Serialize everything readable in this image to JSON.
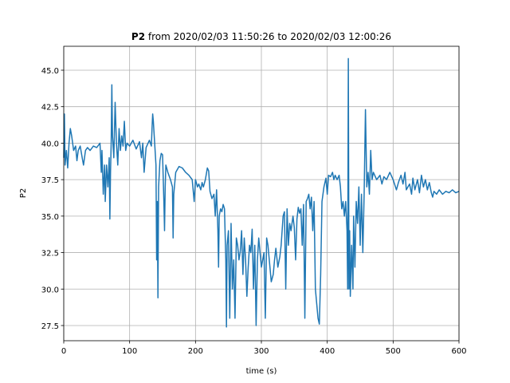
{
  "chart_data": {
    "type": "line",
    "title": {
      "bold": "P2",
      "text": "from 2020/02/03 11:50:26 to 2020/02/03 12:00:26"
    },
    "xlabel": "time (s)",
    "ylabel": "P2",
    "xlim": [
      0,
      600
    ],
    "ylim": [
      26.46,
      46.64
    ],
    "xticks": [
      0,
      100,
      200,
      300,
      400,
      500,
      600
    ],
    "yticks": [
      27.5,
      {
        "value": 30,
        "label": "30.0"
      },
      32.5,
      {
        "value": 35,
        "label": "35.0"
      },
      37.5,
      {
        "value": 40,
        "label": "40.0"
      },
      42.5,
      {
        "value": 45,
        "label": "45.0"
      }
    ],
    "grid": true,
    "series": [
      {
        "name": "P2",
        "color": "#1f77b4",
        "x": [
          0,
          1,
          2,
          4,
          6,
          8,
          10,
          12,
          15,
          18,
          20,
          22,
          25,
          28,
          30,
          33,
          36,
          40,
          45,
          50,
          55,
          57,
          58,
          60,
          62,
          63,
          65,
          67,
          69,
          70,
          71,
          72,
          73,
          74,
          76,
          78,
          80,
          82,
          84,
          86,
          88,
          90,
          92,
          94,
          96,
          100,
          105,
          110,
          115,
          118,
          120,
          122,
          125,
          130,
          133,
          134,
          135,
          136,
          138,
          140,
          141,
          142,
          143,
          144,
          146,
          148,
          150,
          152,
          153,
          154,
          155,
          158,
          162,
          165,
          166,
          167,
          170,
          175,
          180,
          185,
          190,
          195,
          198,
          200,
          203,
          205,
          208,
          210,
          212,
          215,
          218,
          220,
          222,
          225,
          228,
          230,
          232,
          234,
          235,
          236,
          238,
          240,
          242,
          244,
          246,
          247,
          248,
          250,
          252,
          254,
          256,
          258,
          260,
          262,
          264,
          266,
          268,
          270,
          272,
          274,
          276,
          278,
          280,
          282,
          284,
          286,
          288,
          290,
          292,
          294,
          296,
          298,
          300,
          304,
          306,
          308,
          310,
          312,
          315,
          318,
          320,
          322,
          325,
          328,
          330,
          333,
          335,
          337,
          339,
          341,
          343,
          345,
          348,
          350,
          352,
          354,
          356,
          358,
          360,
          362,
          364,
          366,
          368,
          370,
          372,
          374,
          376,
          378,
          380,
          382,
          384,
          386,
          388,
          390,
          392,
          395,
          398,
          400,
          402,
          405,
          408,
          410,
          412,
          415,
          418,
          420,
          422,
          424,
          426,
          428,
          430,
          431,
          432,
          433,
          434,
          435,
          437,
          439,
          440,
          442,
          444,
          446,
          448,
          450,
          452,
          454,
          456,
          458,
          460,
          462,
          464,
          466,
          468,
          470,
          475,
          480,
          483,
          486,
          490,
          495,
          500,
          505,
          508,
          512,
          515,
          518,
          520,
          525,
          528,
          530,
          533,
          537,
          540,
          543,
          546,
          549,
          552,
          555,
          558,
          560,
          562,
          566,
          570,
          575,
          580,
          585,
          590,
          595,
          600
        ],
        "values": [
          39,
          42,
          38.5,
          39.5,
          38.3,
          40,
          41,
          40.5,
          39.5,
          39.8,
          38.8,
          39.5,
          39.8,
          39,
          38.5,
          39.5,
          39.7,
          39.5,
          39.8,
          39.7,
          40,
          38,
          39.5,
          36.5,
          38.5,
          36,
          38.5,
          37,
          39,
          34.8,
          38,
          40,
          44,
          40.5,
          39,
          42.8,
          40,
          38.5,
          41,
          39.5,
          40.5,
          39.8,
          41.5,
          39.5,
          40,
          39.8,
          40.2,
          39.6,
          40.1,
          39,
          40,
          38,
          39.7,
          40.2,
          39.8,
          41,
          42,
          41.5,
          40,
          38.5,
          32,
          36,
          29.4,
          37,
          38.8,
          39.3,
          39.2,
          36,
          34,
          37,
          38.5,
          38,
          37.5,
          37,
          33.5,
          36.5,
          38,
          38.4,
          38.3,
          38,
          37.8,
          37.5,
          36,
          37.5,
          37,
          37.2,
          36.8,
          37.3,
          37,
          37.5,
          38.3,
          38.1,
          36.7,
          36.2,
          36.5,
          35,
          36.8,
          34,
          31.5,
          35,
          35.5,
          35.3,
          35.8,
          35.5,
          32,
          27.4,
          33,
          34,
          28,
          34.5,
          30,
          32,
          28,
          33.5,
          33,
          32,
          32.6,
          34,
          31,
          33.5,
          32,
          29.5,
          31.5,
          33,
          32.5,
          34.1,
          30,
          33,
          27.5,
          32,
          33.5,
          32.5,
          31.5,
          32.5,
          28,
          33.5,
          33,
          32,
          30.5,
          31,
          32,
          32.8,
          31.5,
          32.2,
          33,
          35,
          35.3,
          30,
          35.5,
          33,
          34.5,
          34,
          35,
          34.2,
          32,
          34.8,
          35.6,
          35.2,
          35.5,
          33,
          35.8,
          28,
          36,
          36.2,
          36.5,
          35.5,
          36.3,
          34,
          36,
          30,
          29,
          28,
          27.6,
          31,
          36,
          37,
          37.6,
          36.5,
          37.8,
          37.7,
          38,
          37.5,
          37.8,
          37.5,
          37.8,
          37,
          35.5,
          36,
          35,
          36,
          34,
          30,
          45.8,
          30,
          34,
          29.5,
          33,
          30,
          35,
          31.5,
          36,
          34.5,
          37,
          33,
          36.5,
          32.5,
          36.5,
          42.3,
          37,
          38,
          36.5,
          39.5,
          37.5,
          38,
          37.5,
          37.8,
          37.2,
          37.7,
          37.5,
          38,
          37.5,
          36.8,
          37.3,
          37.8,
          37.2,
          38,
          36.8,
          37.2,
          36.5,
          37.6,
          36.8,
          37.5,
          36.6,
          37.8,
          37,
          37.5,
          36.8,
          37.3,
          36.6,
          36.3,
          36.7,
          36.5,
          36.8,
          36.5,
          36.7,
          36.6,
          36.8,
          36.6,
          36.7
        ]
      }
    ]
  }
}
